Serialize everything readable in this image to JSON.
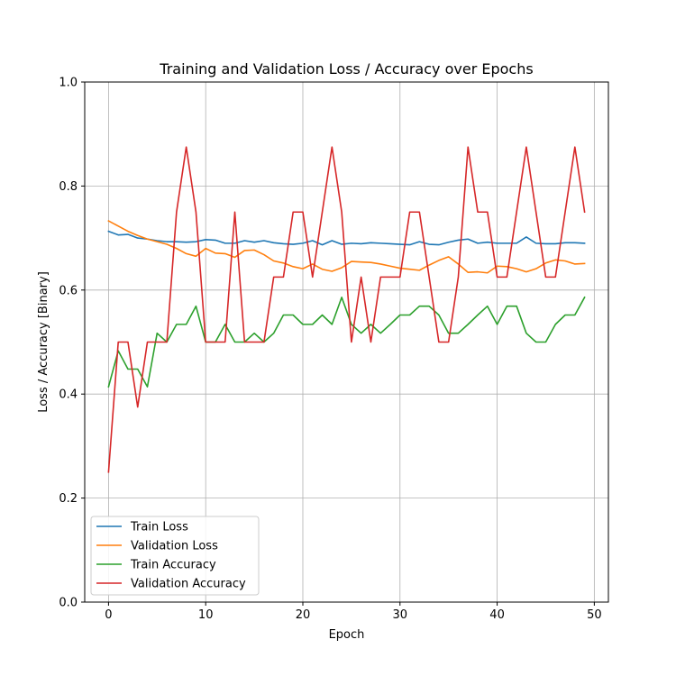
{
  "chart_data": {
    "type": "line",
    "title": "Training and Validation Loss / Accuracy over Epochs",
    "xlabel": "Epoch",
    "ylabel": "Loss / Accuracy [Binary]",
    "xlim": [
      -2.45,
      51.45
    ],
    "ylim": [
      0.0,
      1.0
    ],
    "x_ticks": [
      0,
      10,
      20,
      30,
      40,
      50
    ],
    "y_ticks": [
      0.0,
      0.2,
      0.4,
      0.6,
      0.8,
      1.0
    ],
    "grid": true,
    "legend_position": "lower-left",
    "x": [
      0,
      1,
      2,
      3,
      4,
      5,
      6,
      7,
      8,
      9,
      10,
      11,
      12,
      13,
      14,
      15,
      16,
      17,
      18,
      19,
      20,
      21,
      22,
      23,
      24,
      25,
      26,
      27,
      28,
      29,
      30,
      31,
      32,
      33,
      34,
      35,
      36,
      37,
      38,
      39,
      40,
      41,
      42,
      43,
      44,
      45,
      46,
      47,
      48,
      49
    ],
    "series": [
      {
        "name": "Train Loss",
        "color": "#1f77b4",
        "values": [
          0.713,
          0.706,
          0.707,
          0.7,
          0.698,
          0.695,
          0.693,
          0.693,
          0.692,
          0.693,
          0.697,
          0.696,
          0.69,
          0.69,
          0.695,
          0.692,
          0.695,
          0.691,
          0.689,
          0.688,
          0.69,
          0.695,
          0.687,
          0.695,
          0.688,
          0.69,
          0.689,
          0.691,
          0.69,
          0.689,
          0.688,
          0.687,
          0.693,
          0.688,
          0.687,
          0.692,
          0.696,
          0.698,
          0.69,
          0.692,
          0.69,
          0.69,
          0.69,
          0.702,
          0.69,
          0.689,
          0.689,
          0.691,
          0.691,
          0.69
        ]
      },
      {
        "name": "Validation Loss",
        "color": "#ff7f0e",
        "values": [
          0.733,
          0.723,
          0.713,
          0.705,
          0.698,
          0.693,
          0.688,
          0.68,
          0.67,
          0.665,
          0.68,
          0.671,
          0.67,
          0.663,
          0.676,
          0.677,
          0.668,
          0.656,
          0.652,
          0.645,
          0.641,
          0.65,
          0.64,
          0.636,
          0.643,
          0.655,
          0.654,
          0.653,
          0.65,
          0.646,
          0.642,
          0.64,
          0.638,
          0.648,
          0.657,
          0.664,
          0.65,
          0.634,
          0.635,
          0.633,
          0.646,
          0.645,
          0.641,
          0.635,
          0.641,
          0.652,
          0.658,
          0.656,
          0.65,
          0.651
        ]
      },
      {
        "name": "Train Accuracy",
        "color": "#2ca02c",
        "values": [
          0.414,
          0.483,
          0.448,
          0.448,
          0.414,
          0.517,
          0.5,
          0.534,
          0.534,
          0.569,
          0.5,
          0.5,
          0.534,
          0.5,
          0.5,
          0.517,
          0.5,
          0.517,
          0.552,
          0.552,
          0.534,
          0.534,
          0.552,
          0.534,
          0.586,
          0.534,
          0.517,
          0.534,
          0.517,
          0.534,
          0.552,
          0.552,
          0.569,
          0.569,
          0.552,
          0.517,
          0.517,
          0.534,
          0.552,
          0.569,
          0.534,
          0.569,
          0.569,
          0.517,
          0.5,
          0.5,
          0.534,
          0.552,
          0.552,
          0.586
        ]
      },
      {
        "name": "Validation Accuracy",
        "color": "#d62728",
        "values": [
          0.25,
          0.5,
          0.5,
          0.375,
          0.5,
          0.5,
          0.5,
          0.75,
          0.875,
          0.75,
          0.5,
          0.5,
          0.5,
          0.75,
          0.5,
          0.5,
          0.5,
          0.625,
          0.625,
          0.75,
          0.75,
          0.625,
          0.75,
          0.875,
          0.75,
          0.5,
          0.625,
          0.5,
          0.625,
          0.625,
          0.625,
          0.75,
          0.75,
          0.625,
          0.5,
          0.5,
          0.625,
          0.875,
          0.75,
          0.75,
          0.625,
          0.625,
          0.75,
          0.875,
          0.75,
          0.625,
          0.625,
          0.75,
          0.875,
          0.75
        ]
      }
    ]
  }
}
